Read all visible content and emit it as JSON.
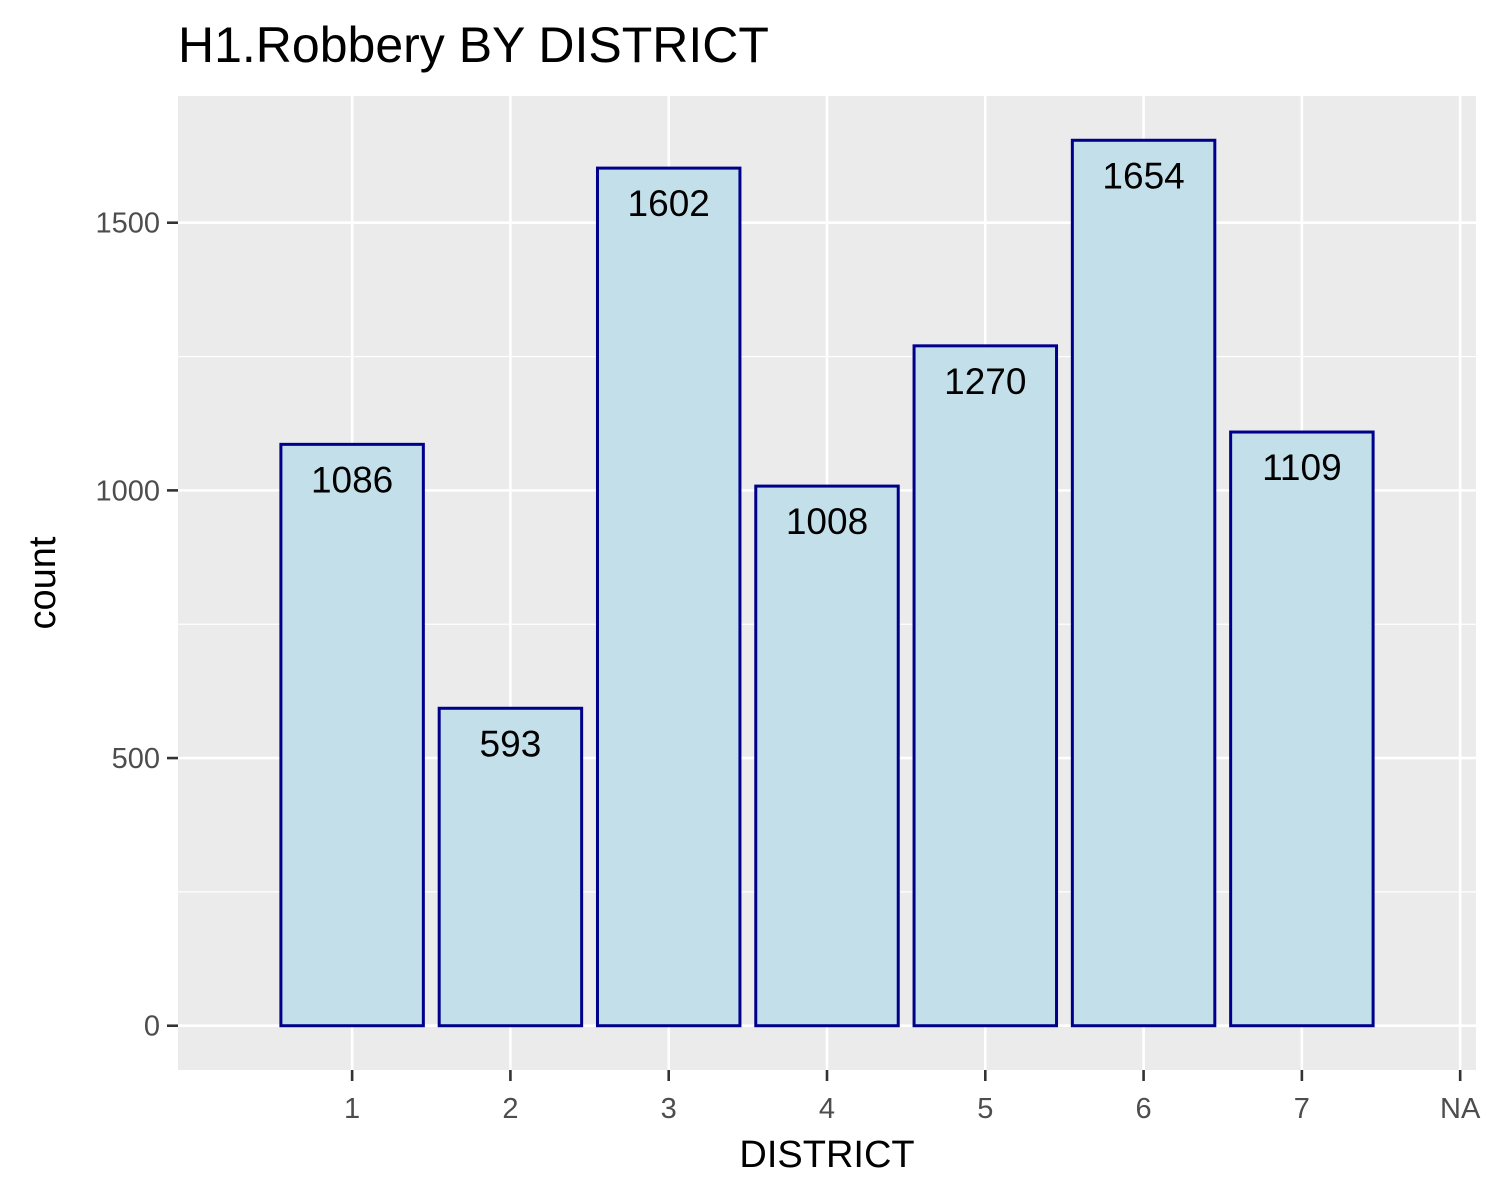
{
  "chart_data": {
    "type": "bar",
    "title": "H1.Robbery BY DISTRICT",
    "xlabel": "DISTRICT",
    "ylabel": "count",
    "categories": [
      "1",
      "2",
      "3",
      "4",
      "5",
      "6",
      "7",
      "NA"
    ],
    "values": [
      1086,
      593,
      1602,
      1008,
      1270,
      1654,
      1109,
      null
    ],
    "data_labels": [
      "1086",
      "593",
      "1602",
      "1008",
      "1270",
      "1654",
      "1109",
      ""
    ],
    "y_ticks": [
      0,
      500,
      1000,
      1500
    ],
    "y_tick_labels": [
      "0",
      "500",
      "1000",
      "1500"
    ],
    "ylim": [
      -82.7,
      1736.7
    ],
    "grid": true,
    "legend": "none",
    "colors": {
      "panel_background": "#ebebeb",
      "grid": "#ffffff",
      "bar_fill": "#c3e0ea",
      "bar_outline": "#00008b"
    }
  }
}
